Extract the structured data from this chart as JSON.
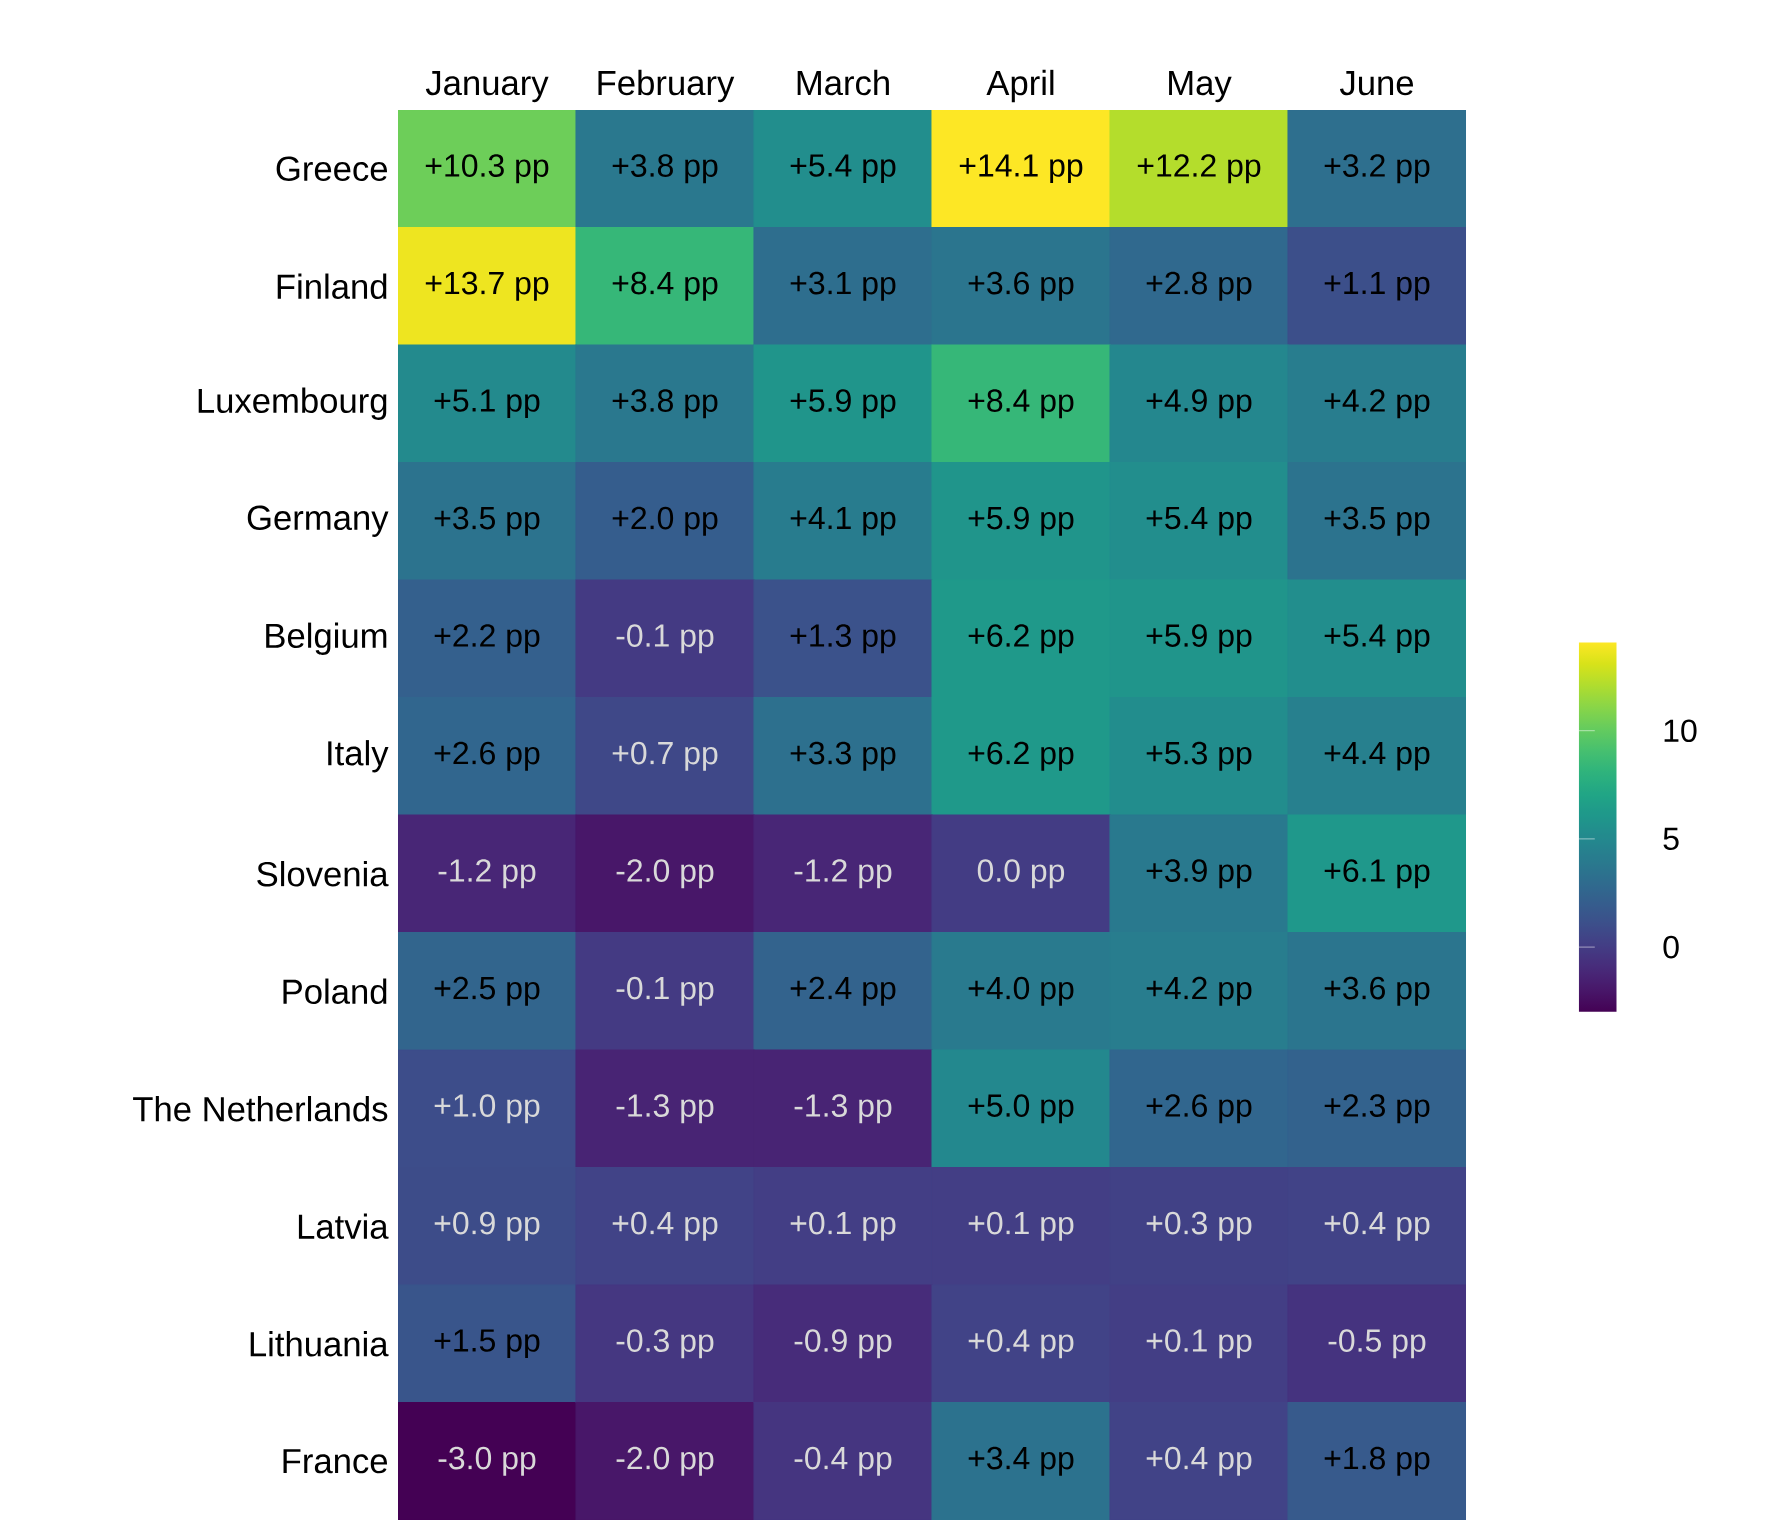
{
  "chart_data": {
    "type": "heatmap",
    "categories": [
      "January",
      "February",
      "March",
      "April",
      "May",
      "June"
    ],
    "y_categories": [
      "Greece",
      "Finland",
      "Luxembourg",
      "Germany",
      "Belgium",
      "Italy",
      "Slovenia",
      "Poland",
      "The Netherlands",
      "Latvia",
      "Lithuania",
      "France"
    ],
    "cells": [
      [
        10.3,
        3.8,
        5.4,
        14.1,
        12.2,
        3.2
      ],
      [
        13.7,
        8.4,
        3.1,
        3.6,
        2.8,
        1.1
      ],
      [
        5.1,
        3.8,
        5.9,
        8.4,
        4.9,
        4.2
      ],
      [
        3.5,
        2.0,
        4.1,
        5.9,
        5.4,
        3.5
      ],
      [
        2.2,
        -0.1,
        1.3,
        6.2,
        5.9,
        5.4
      ],
      [
        2.6,
        0.7,
        3.3,
        6.2,
        5.3,
        4.4
      ],
      [
        -1.2,
        -2.0,
        -1.2,
        0.0,
        3.9,
        6.1
      ],
      [
        2.5,
        -0.1,
        2.4,
        4.0,
        4.2,
        3.6
      ],
      [
        1.0,
        -1.3,
        -1.3,
        5.0,
        2.6,
        2.3
      ],
      [
        0.9,
        0.4,
        0.1,
        0.1,
        0.3,
        0.4
      ],
      [
        1.5,
        -0.3,
        -0.9,
        0.4,
        0.1,
        -0.5
      ],
      [
        -3.0,
        -2.0,
        -0.4,
        3.4,
        0.4,
        1.8
      ]
    ],
    "cell_labels": [
      [
        "+10.3 pp",
        "+3.8 pp",
        "+5.4 pp",
        "+14.1 pp",
        "+12.2 pp",
        "+3.2 pp"
      ],
      [
        "+13.7 pp",
        "+8.4 pp",
        "+3.1 pp",
        "+3.6 pp",
        "+2.8 pp",
        "+1.1 pp"
      ],
      [
        "+5.1 pp",
        "+3.8 pp",
        "+5.9 pp",
        "+8.4 pp",
        "+4.9 pp",
        "+4.2 pp"
      ],
      [
        "+3.5 pp",
        "+2.0 pp",
        "+4.1 pp",
        "+5.9 pp",
        "+5.4 pp",
        "+3.5 pp"
      ],
      [
        "+2.2 pp",
        "-0.1 pp",
        "+1.3 pp",
        "+6.2 pp",
        "+5.9 pp",
        "+5.4 pp"
      ],
      [
        "+2.6 pp",
        "+0.7 pp",
        "+3.3 pp",
        "+6.2 pp",
        "+5.3 pp",
        "+4.4 pp"
      ],
      [
        "-1.2 pp",
        "-2.0 pp",
        "-1.2 pp",
        "0.0 pp",
        "+3.9 pp",
        "+6.1 pp"
      ],
      [
        "+2.5 pp",
        "-0.1 pp",
        "+2.4 pp",
        "+4.0 pp",
        "+4.2 pp",
        "+3.6 pp"
      ],
      [
        "+1.0 pp",
        "-1.3 pp",
        "-1.3 pp",
        "+5.0 pp",
        "+2.6 pp",
        "+2.3 pp"
      ],
      [
        "+0.9 pp",
        "+0.4 pp",
        "+0.1 pp",
        "+0.1 pp",
        "+0.3 pp",
        "+0.4 pp"
      ],
      [
        "+1.5 pp",
        "-0.3 pp",
        "-0.9 pp",
        "+0.4 pp",
        "+0.1 pp",
        "-0.5 pp"
      ],
      [
        "-3.0 pp",
        "-2.0 pp",
        "-0.4 pp",
        "+3.4 pp",
        "+0.4 pp",
        "+1.8 pp"
      ]
    ],
    "clim": [
      -3.0,
      14.1
    ],
    "cticks": [
      0,
      5,
      10
    ]
  }
}
